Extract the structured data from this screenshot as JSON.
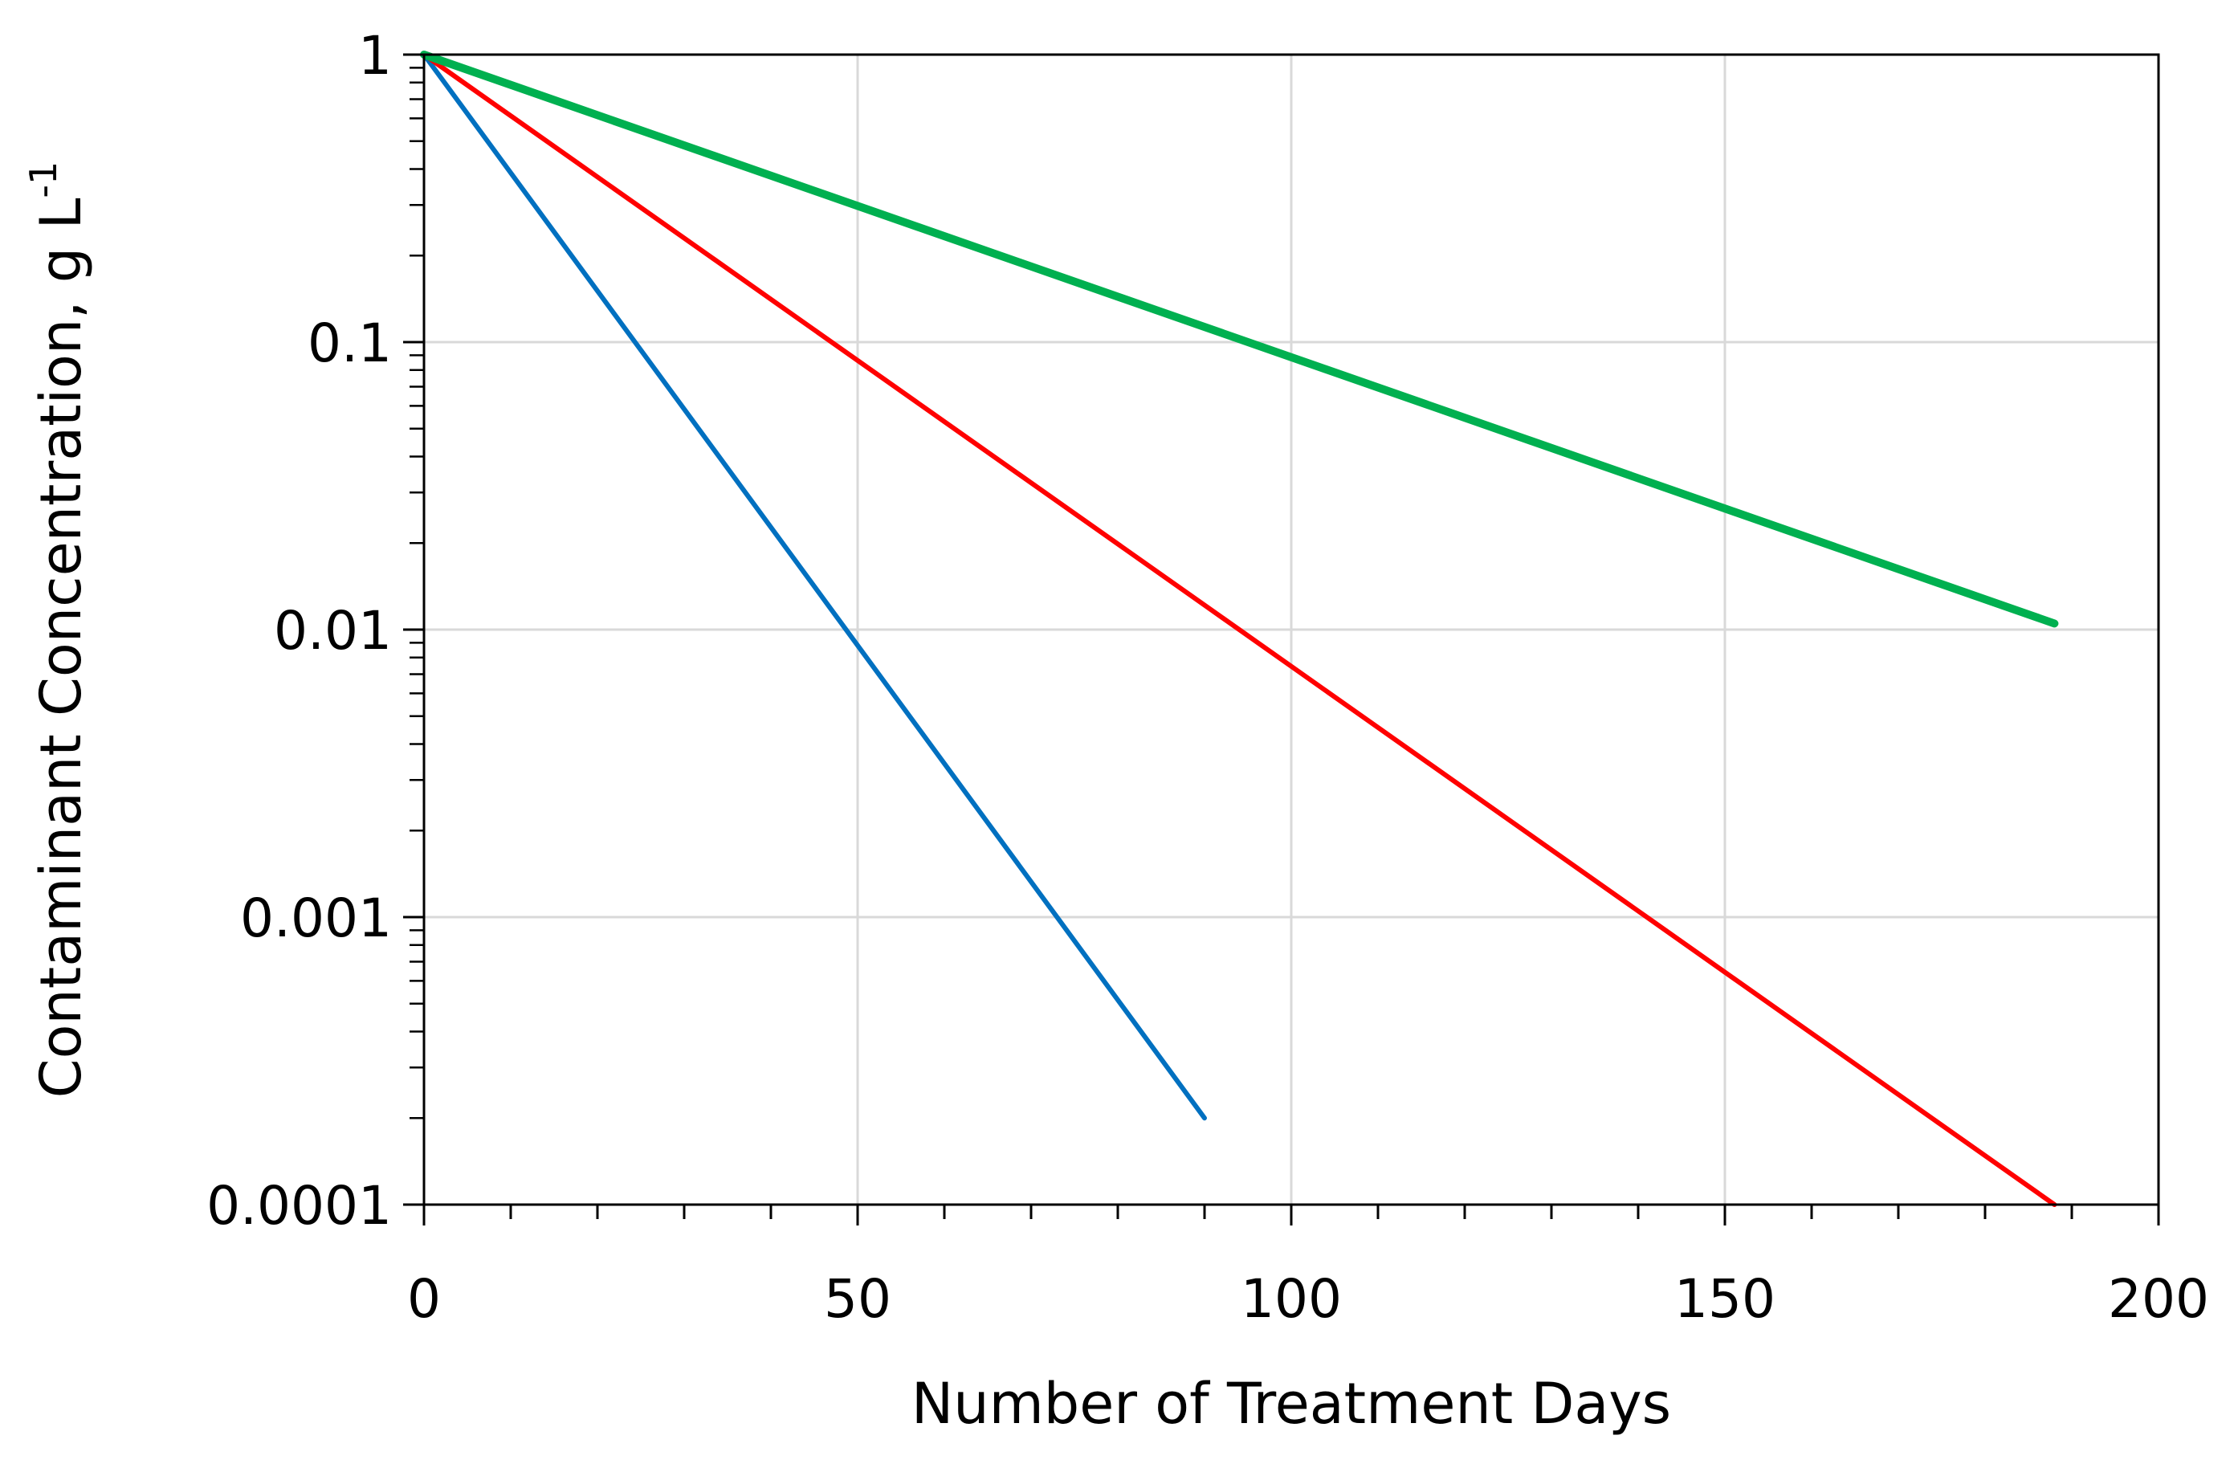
{
  "chart_data": {
    "type": "line",
    "title": "",
    "xlabel": "Number of Treatment Days",
    "ylabel": "Contaminant Concentration, g L",
    "ylabel_superscript": "-1",
    "xlim": [
      0,
      200
    ],
    "ylim": [
      0.0001,
      1
    ],
    "yscale": "log",
    "grid": true,
    "legend": "none",
    "x_ticks": [
      {
        "value": 0,
        "label": "0"
      },
      {
        "value": 50,
        "label": "50"
      },
      {
        "value": 100,
        "label": "100"
      },
      {
        "value": 150,
        "label": "150"
      },
      {
        "value": 200,
        "label": "200"
      }
    ],
    "y_ticks": [
      {
        "value": 1,
        "label": "1"
      },
      {
        "value": 0.1,
        "label": "0.1"
      },
      {
        "value": 0.01,
        "label": "0.01"
      },
      {
        "value": 0.001,
        "label": "0.001"
      },
      {
        "value": 0.0001,
        "label": "0.0001"
      }
    ],
    "series": [
      {
        "color": "#0070C0",
        "stroke_width": 6,
        "x": [
          0,
          90
        ],
        "y": [
          1,
          0.0002
        ]
      },
      {
        "color": "#FF0000",
        "stroke_width": 6,
        "x": [
          0,
          188
        ],
        "y": [
          1,
          0.0001
        ]
      },
      {
        "color": "#00B050",
        "stroke_width": 10,
        "x": [
          0,
          188
        ],
        "y": [
          1,
          0.0105
        ]
      }
    ],
    "colors": {
      "axis": "#000000",
      "grid": "#D9D9D9",
      "background": "#FFFFFF"
    }
  }
}
